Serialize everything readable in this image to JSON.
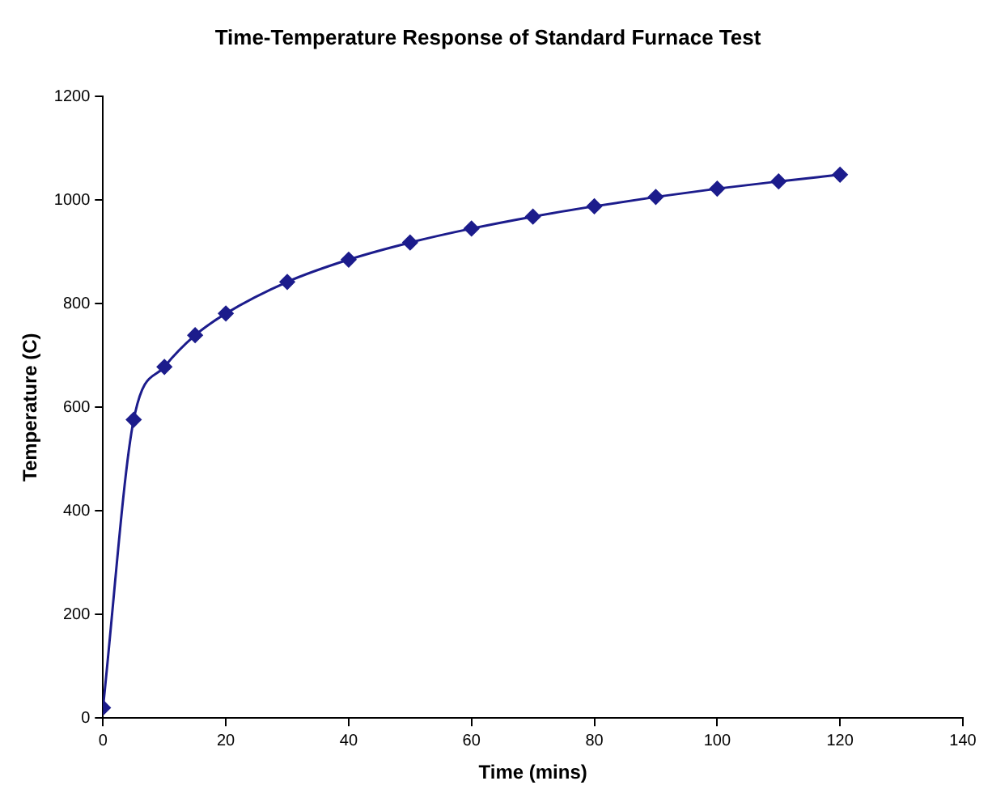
{
  "chart_data": {
    "type": "line",
    "title": "Time-Temperature Response of Standard Furnace Test",
    "xlabel": "Time (mins)",
    "ylabel": "Temperature (C)",
    "x": [
      0,
      5,
      10,
      15,
      20,
      30,
      40,
      50,
      60,
      70,
      80,
      90,
      100,
      110,
      120
    ],
    "series": [
      {
        "color": "#1c1c8c",
        "values": [
          20,
          576,
          678,
          739,
          781,
          842,
          885,
          918,
          945,
          968,
          988,
          1006,
          1022,
          1036,
          1049
        ]
      }
    ],
    "xlim": [
      0,
      140
    ],
    "xticks": [
      0,
      20,
      40,
      60,
      80,
      100,
      120,
      140
    ],
    "ylim": [
      0,
      1200
    ],
    "yticks": [
      0,
      200,
      400,
      600,
      800,
      1000,
      1200
    ],
    "grid": false,
    "legend": false,
    "marker": "diamond",
    "line_style": "solid"
  }
}
